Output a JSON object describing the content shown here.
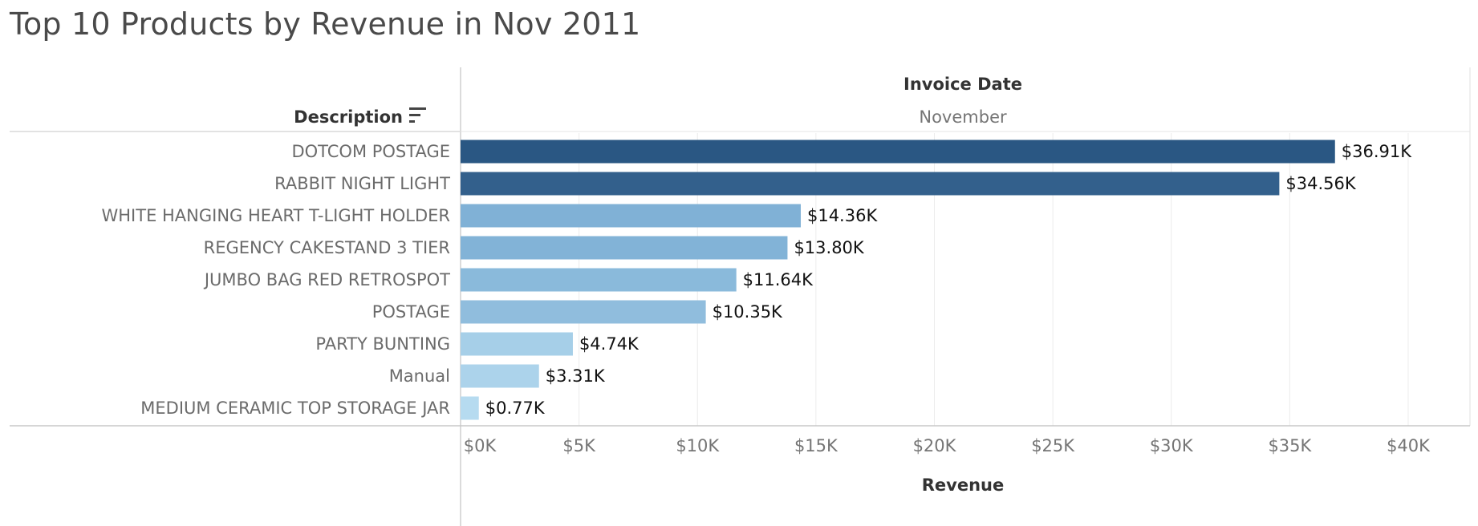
{
  "chart_data": {
    "type": "bar",
    "orientation": "horizontal",
    "title": "Top 10 Products by Revenue in Nov 2011",
    "row_header": "Description",
    "column_header": "Invoice Date",
    "column_value": "November",
    "xlabel": "Revenue",
    "ylabel": "",
    "categories": [
      "DOTCOM POSTAGE",
      "RABBIT NIGHT LIGHT",
      "WHITE HANGING HEART T-LIGHT HOLDER",
      "REGENCY CAKESTAND 3 TIER",
      "JUMBO BAG RED RETROSPOT",
      "POSTAGE",
      "PARTY BUNTING",
      "Manual",
      "MEDIUM CERAMIC TOP STORAGE JAR"
    ],
    "values": [
      36.91,
      34.56,
      14.36,
      13.8,
      11.64,
      10.35,
      4.74,
      3.31,
      0.77
    ],
    "value_labels": [
      "$36.91K",
      "$34.56K",
      "$14.36K",
      "$13.80K",
      "$11.64K",
      "$10.35K",
      "$4.74K",
      "$3.31K",
      "$0.77K"
    ],
    "unit": "K",
    "xlim": [
      0,
      42
    ],
    "xticks": [
      0,
      5,
      10,
      15,
      20,
      25,
      30,
      35,
      40
    ],
    "xtick_labels": [
      "$0K",
      "$5K",
      "$10K",
      "$15K",
      "$20K",
      "$25K",
      "$30K",
      "$35K",
      "$40K"
    ],
    "color_scale": {
      "low": "#b9ddf1",
      "mid": "#7eb0d5",
      "high": "#2a5783"
    },
    "grid": true,
    "sort_icon": "sort-descending-icon"
  }
}
